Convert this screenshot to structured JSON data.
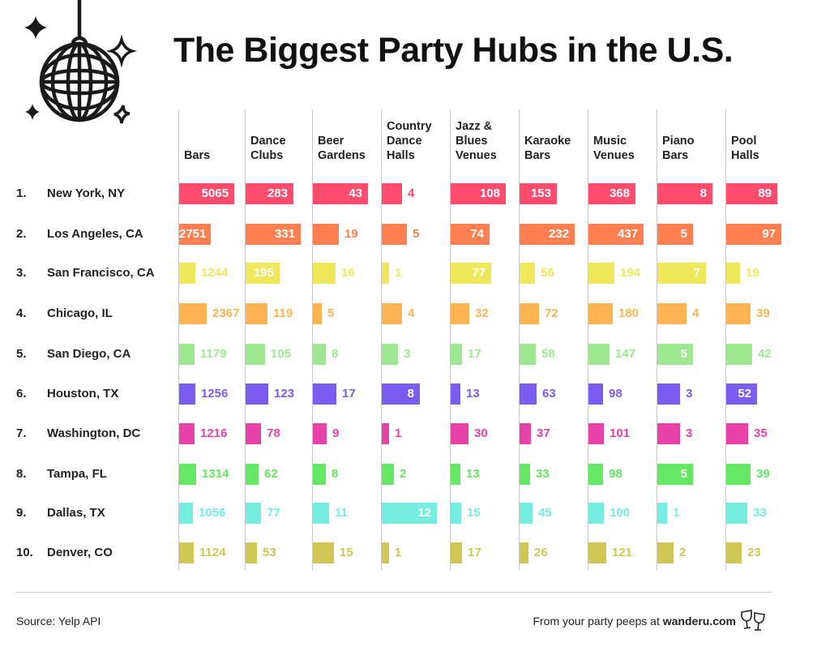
{
  "chart_data": {
    "type": "bar",
    "title": "The Biggest Party Hubs in the U.S.",
    "orientation": "horizontal",
    "layout": "small-multiples-per-column",
    "columns": [
      "Bars",
      "Dance Clubs",
      "Beer Gardens",
      "Country Dance Halls",
      "Jazz & Blues Venues",
      "Karaoke Bars",
      "Music Venues",
      "Piano Bars",
      "Pool Halls"
    ],
    "column_headers": [
      [
        "Bars"
      ],
      [
        "Dance",
        "Clubs"
      ],
      [
        "Beer",
        "Gardens"
      ],
      [
        "Country",
        "Dance",
        "Halls"
      ],
      [
        "Jazz &",
        "Blues",
        "Venues"
      ],
      [
        "Karaoke",
        "Bars"
      ],
      [
        "Music",
        "Venues"
      ],
      [
        "Piano",
        "Bars"
      ],
      [
        "Pool",
        "Halls"
      ]
    ],
    "rows": [
      {
        "rank": "1.",
        "city": "New York, NY",
        "color": "#FF4B6E",
        "values": [
          5065,
          283,
          43,
          4,
          108,
          153,
          368,
          8,
          89
        ]
      },
      {
        "rank": "2.",
        "city": "Los Angeles, CA",
        "color": "#FF7F50",
        "values": [
          2751,
          331,
          19,
          5,
          74,
          232,
          437,
          5,
          97
        ]
      },
      {
        "rank": "3.",
        "city": "San Francisco, CA",
        "color": "#EEE85A",
        "values": [
          1244,
          195,
          16,
          1,
          77,
          56,
          194,
          7,
          19
        ]
      },
      {
        "rank": "4.",
        "city": "Chicago, IL",
        "color": "#FFB452",
        "values": [
          2367,
          119,
          5,
          4,
          32,
          72,
          180,
          4,
          39
        ]
      },
      {
        "rank": "5.",
        "city": "San Diego, CA",
        "color": "#9DE891",
        "values": [
          1179,
          105,
          8,
          3,
          17,
          58,
          147,
          5,
          42
        ]
      },
      {
        "rank": "6.",
        "city": "Houston, TX",
        "color": "#7B5CF0",
        "values": [
          1256,
          123,
          17,
          8,
          13,
          63,
          98,
          3,
          52
        ]
      },
      {
        "rank": "7.",
        "city": "Washington, DC",
        "color": "#E642A8",
        "values": [
          1216,
          78,
          9,
          1,
          30,
          37,
          101,
          3,
          35
        ]
      },
      {
        "rank": "8.",
        "city": "Tampa, FL",
        "color": "#64E864",
        "values": [
          1314,
          62,
          8,
          2,
          13,
          33,
          98,
          5,
          39
        ]
      },
      {
        "rank": "9.",
        "city": "Dallas, TX",
        "color": "#74EDE0",
        "values": [
          1056,
          77,
          11,
          12,
          15,
          45,
          100,
          1,
          33
        ]
      },
      {
        "rank": "10.",
        "city": "Denver, CO",
        "color": "#CFC654",
        "values": [
          1124,
          53,
          15,
          1,
          17,
          26,
          121,
          2,
          23
        ]
      }
    ],
    "grid": false
  },
  "footer": {
    "source": "Source: Yelp API",
    "credit_prefix": "From your party peeps at ",
    "credit_brand": "wanderu.com"
  },
  "icons": {
    "logo": "disco-ball-icon",
    "sparkles": "sparkle-icon",
    "footer": "wine-glasses-icon"
  }
}
